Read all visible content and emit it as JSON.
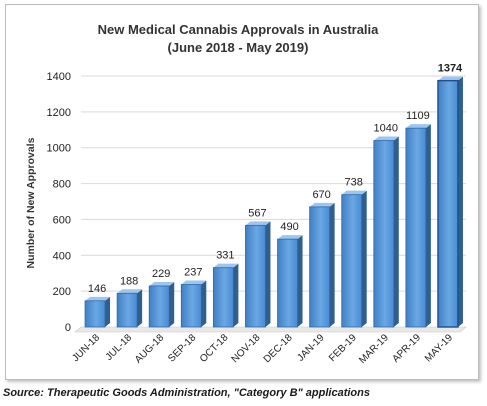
{
  "chart_data": {
    "type": "bar",
    "title": "New Medical Cannabis Approvals in Australia",
    "subtitle": "(June 2018 - May 2019)",
    "xlabel": "",
    "ylabel": "Number of New Approvals",
    "categories": [
      "JUN-18",
      "JUL-18",
      "AUG-18",
      "SEP-18",
      "OCT-18",
      "NOV-18",
      "DEC-18",
      "JAN-19",
      "FEB-19",
      "MAR-19",
      "APR-19",
      "MAY-19"
    ],
    "values": [
      146,
      188,
      229,
      237,
      331,
      567,
      490,
      670,
      738,
      1040,
      1109,
      1374
    ],
    "value_labels": [
      "146",
      "188",
      "229",
      "237",
      "331",
      "567",
      "490",
      "670",
      "738",
      "1040",
      "1109",
      "1374"
    ],
    "ylim": [
      0,
      1400
    ],
    "yticks": [
      0,
      200,
      400,
      600,
      800,
      1000,
      1200,
      1400
    ],
    "ytick_labels": [
      "0",
      "200",
      "400",
      "600",
      "800",
      "1000",
      "1200",
      "1400"
    ],
    "grid": true,
    "bar_color": "#5b9bd5",
    "highlight_last": true
  },
  "source_note": "Source: Therapeutic Goods Administration, \"Category B\" applications"
}
